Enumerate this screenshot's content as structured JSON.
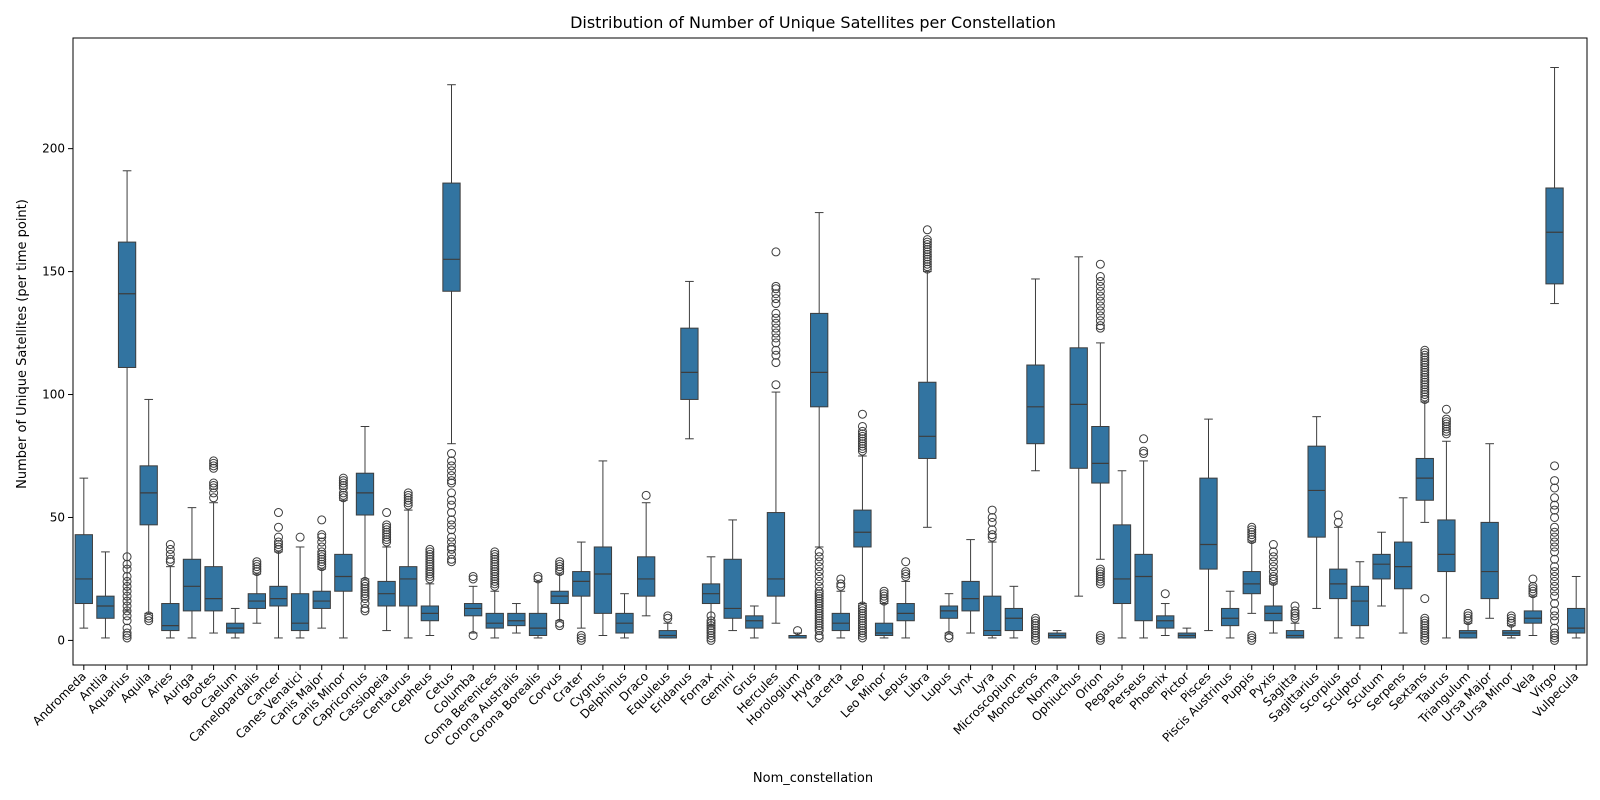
{
  "chart_data": {
    "type": "box",
    "title": "Distribution of Number of Unique Satellites per Constellation",
    "xlabel": "Nom_constellation",
    "ylabel": "Number of Unique Satellites (per time point)",
    "ylim": [
      -10,
      245
    ],
    "yticks": [
      0,
      50,
      100,
      150,
      200
    ],
    "grid": false,
    "color": "#3274a1",
    "outlier_color": "#3d3d3d",
    "boxes": [
      {
        "name": "Andromeda",
        "whislo": 5,
        "q1": 15,
        "med": 25,
        "q3": 43,
        "whishi": 66,
        "outliers": []
      },
      {
        "name": "Antlia",
        "whislo": 1,
        "q1": 9,
        "med": 14,
        "q3": 18,
        "whishi": 36,
        "outliers": []
      },
      {
        "name": "Aquarius",
        "whislo": 12,
        "q1": 111,
        "med": 141,
        "q3": 162,
        "whishi": 191,
        "outliers": [
          1,
          2,
          3,
          5,
          8,
          10,
          12,
          14,
          16,
          18,
          20,
          22,
          24,
          26,
          29,
          31,
          34
        ]
      },
      {
        "name": "Aquila",
        "whislo": 11,
        "q1": 47,
        "med": 60,
        "q3": 71,
        "whishi": 98,
        "outliers": [
          8,
          9,
          10
        ]
      },
      {
        "name": "Aries",
        "whislo": 1,
        "q1": 4,
        "med": 6,
        "q3": 15,
        "whishi": 30,
        "outliers": [
          32,
          33,
          35,
          37,
          39
        ]
      },
      {
        "name": "Auriga",
        "whislo": 1,
        "q1": 12,
        "med": 22,
        "q3": 33,
        "whishi": 54,
        "outliers": []
      },
      {
        "name": "Bootes",
        "whislo": 3,
        "q1": 12,
        "med": 17,
        "q3": 30,
        "whishi": 56,
        "outliers": [
          58,
          60,
          62,
          63,
          64,
          70,
          71,
          72,
          73
        ]
      },
      {
        "name": "Caelum",
        "whislo": 1,
        "q1": 3,
        "med": 5,
        "q3": 7,
        "whishi": 13,
        "outliers": []
      },
      {
        "name": "Camelopardalis",
        "whislo": 7,
        "q1": 13,
        "med": 16,
        "q3": 19,
        "whishi": 27,
        "outliers": [
          28,
          29,
          30,
          31,
          32
        ]
      },
      {
        "name": "Cancer",
        "whislo": 1,
        "q1": 14,
        "med": 17,
        "q3": 22,
        "whishi": 36,
        "outliers": [
          37,
          38,
          39,
          40,
          42,
          46,
          52
        ]
      },
      {
        "name": "Canes Venatici",
        "whislo": 1,
        "q1": 4,
        "med": 7,
        "q3": 19,
        "whishi": 38,
        "outliers": [
          42
        ]
      },
      {
        "name": "Canis Major",
        "whislo": 5,
        "q1": 13,
        "med": 16,
        "q3": 20,
        "whishi": 29,
        "outliers": [
          30,
          31,
          32,
          33,
          34,
          35,
          36,
          38,
          40,
          42,
          43,
          49
        ]
      },
      {
        "name": "Canis Minor",
        "whislo": 1,
        "q1": 20,
        "med": 26,
        "q3": 35,
        "whishi": 57,
        "outliers": [
          58,
          59,
          60,
          62,
          63,
          64,
          65,
          66
        ]
      },
      {
        "name": "Capricornus",
        "whislo": 25,
        "q1": 51,
        "med": 60,
        "q3": 68,
        "whishi": 87,
        "outliers": [
          12,
          13,
          15,
          17,
          18,
          19,
          20,
          21,
          22,
          23,
          24
        ]
      },
      {
        "name": "Cassiopeia",
        "whislo": 4,
        "q1": 14,
        "med": 19,
        "q3": 24,
        "whishi": 38,
        "outliers": [
          40,
          41,
          42,
          43,
          44,
          45,
          46,
          47,
          52
        ]
      },
      {
        "name": "Centaurus",
        "whislo": 1,
        "q1": 14,
        "med": 25,
        "q3": 30,
        "whishi": 53,
        "outliers": [
          55,
          56,
          57,
          58,
          59,
          60
        ]
      },
      {
        "name": "Cepheus",
        "whislo": 2,
        "q1": 8,
        "med": 11,
        "q3": 14,
        "whishi": 23,
        "outliers": [
          25,
          26,
          27,
          28,
          29,
          30,
          31,
          32,
          33,
          34,
          35,
          36,
          37
        ]
      },
      {
        "name": "Cetus",
        "whislo": 80,
        "q1": 142,
        "med": 155,
        "q3": 186,
        "whishi": 226,
        "outliers": [
          32,
          33,
          35,
          37,
          38,
          40,
          42,
          45,
          47,
          49,
          52,
          55,
          57,
          60,
          64,
          65,
          67,
          69,
          71,
          73,
          76
        ]
      },
      {
        "name": "Columba",
        "whislo": 3,
        "q1": 10,
        "med": 13,
        "q3": 15,
        "whishi": 22,
        "outliers": [
          2,
          25,
          26
        ]
      },
      {
        "name": "Coma Berenices",
        "whislo": 1,
        "q1": 5,
        "med": 7,
        "q3": 11,
        "whishi": 20,
        "outliers": [
          22,
          23,
          24,
          25,
          26,
          27,
          28,
          29,
          30,
          31,
          32,
          33,
          34,
          35,
          36
        ]
      },
      {
        "name": "Corona Australis",
        "whislo": 3,
        "q1": 6,
        "med": 8,
        "q3": 11,
        "whishi": 15,
        "outliers": []
      },
      {
        "name": "Corona Borealis",
        "whislo": 1,
        "q1": 2,
        "med": 5,
        "q3": 11,
        "whishi": 24,
        "outliers": [
          25,
          26
        ]
      },
      {
        "name": "Corvus",
        "whislo": 8,
        "q1": 15,
        "med": 18,
        "q3": 20,
        "whishi": 27,
        "outliers": [
          6,
          7,
          28,
          29,
          30,
          31,
          32
        ]
      },
      {
        "name": "Crater",
        "whislo": 5,
        "q1": 18,
        "med": 24,
        "q3": 28,
        "whishi": 40,
        "outliers": [
          0,
          1,
          2
        ]
      },
      {
        "name": "Cygnus",
        "whislo": 2,
        "q1": 11,
        "med": 27,
        "q3": 38,
        "whishi": 73,
        "outliers": []
      },
      {
        "name": "Delphinus",
        "whislo": 1,
        "q1": 3,
        "med": 7,
        "q3": 11,
        "whishi": 19,
        "outliers": []
      },
      {
        "name": "Draco",
        "whislo": 10,
        "q1": 18,
        "med": 25,
        "q3": 34,
        "whishi": 56,
        "outliers": [
          59
        ]
      },
      {
        "name": "Equuleus",
        "whislo": 1,
        "q1": 1,
        "med": 2,
        "q3": 4,
        "whishi": 7,
        "outliers": [
          9,
          10
        ]
      },
      {
        "name": "Eridanus",
        "whislo": 82,
        "q1": 98,
        "med": 109,
        "q3": 127,
        "whishi": 146,
        "outliers": []
      },
      {
        "name": "Fornax",
        "whislo": 6,
        "q1": 15,
        "med": 19,
        "q3": 23,
        "whishi": 34,
        "outliers": [
          0,
          1,
          2,
          3,
          4,
          5,
          6,
          7,
          8,
          10
        ]
      },
      {
        "name": "Gemini",
        "whislo": 4,
        "q1": 9,
        "med": 13,
        "q3": 33,
        "whishi": 49,
        "outliers": []
      },
      {
        "name": "Grus",
        "whislo": 1,
        "q1": 5,
        "med": 8,
        "q3": 10,
        "whishi": 14,
        "outliers": []
      },
      {
        "name": "Hercules",
        "whislo": 7,
        "q1": 18,
        "med": 25,
        "q3": 52,
        "whishi": 101,
        "outliers": [
          104,
          113,
          116,
          118,
          121,
          123,
          125,
          127,
          129,
          131,
          133,
          137,
          139,
          141,
          143,
          144,
          158
        ]
      },
      {
        "name": "Horologium",
        "whislo": 1,
        "q1": 1,
        "med": 1,
        "q3": 2,
        "whishi": 3,
        "outliers": [
          4
        ]
      },
      {
        "name": "Hydra",
        "whislo": 38,
        "q1": 95,
        "med": 109,
        "q3": 133,
        "whishi": 174,
        "outliers": [
          1,
          2,
          4,
          5,
          6,
          7,
          8,
          9,
          10,
          11,
          12,
          13,
          14,
          15,
          16,
          17,
          18,
          19,
          20,
          22,
          24,
          26,
          28,
          30,
          32,
          34,
          36
        ]
      },
      {
        "name": "Lacerta",
        "whislo": 1,
        "q1": 4,
        "med": 7,
        "q3": 11,
        "whishi": 20,
        "outliers": [
          22,
          23,
          25
        ]
      },
      {
        "name": "Leo",
        "whislo": 15,
        "q1": 38,
        "med": 44,
        "q3": 53,
        "whishi": 75,
        "outliers": [
          1,
          2,
          3,
          4,
          5,
          6,
          7,
          8,
          9,
          10,
          11,
          12,
          13,
          14,
          77,
          78,
          79,
          80,
          81,
          82,
          83,
          84,
          85,
          87,
          92
        ]
      },
      {
        "name": "Leo Minor",
        "whislo": 1,
        "q1": 2,
        "med": 3,
        "q3": 7,
        "whishi": 15,
        "outliers": [
          16,
          17,
          18,
          19,
          20
        ]
      },
      {
        "name": "Lepus",
        "whislo": 1,
        "q1": 8,
        "med": 11,
        "q3": 15,
        "whishi": 24,
        "outliers": [
          26,
          27,
          28,
          32
        ]
      },
      {
        "name": "Libra",
        "whislo": 46,
        "q1": 74,
        "med": 83,
        "q3": 105,
        "whishi": 150,
        "outliers": [
          151,
          152,
          153,
          154,
          155,
          156,
          157,
          158,
          159,
          160,
          161,
          162,
          163,
          167
        ]
      },
      {
        "name": "Lupus",
        "whislo": 3,
        "q1": 9,
        "med": 12,
        "q3": 14,
        "whishi": 19,
        "outliers": [
          1,
          2
        ]
      },
      {
        "name": "Lynx",
        "whislo": 3,
        "q1": 12,
        "med": 17,
        "q3": 24,
        "whishi": 41,
        "outliers": []
      },
      {
        "name": "Lyra",
        "whislo": 1,
        "q1": 2,
        "med": 4,
        "q3": 18,
        "whishi": 40,
        "outliers": [
          42,
          43,
          45,
          48,
          50,
          53
        ]
      },
      {
        "name": "Microscopium",
        "whislo": 1,
        "q1": 4,
        "med": 9,
        "q3": 13,
        "whishi": 22,
        "outliers": []
      },
      {
        "name": "Monoceros",
        "whislo": 69,
        "q1": 80,
        "med": 95,
        "q3": 112,
        "whishi": 147,
        "outliers": [
          0,
          1,
          2,
          3,
          4,
          5,
          6,
          7,
          8,
          9
        ]
      },
      {
        "name": "Norma",
        "whislo": 1,
        "q1": 1,
        "med": 2,
        "q3": 3,
        "whishi": 4,
        "outliers": []
      },
      {
        "name": "Ophiuchus",
        "whislo": 18,
        "q1": 70,
        "med": 96,
        "q3": 119,
        "whishi": 156,
        "outliers": []
      },
      {
        "name": "Orion",
        "whislo": 33,
        "q1": 64,
        "med": 72,
        "q3": 87,
        "whishi": 121,
        "outliers": [
          0,
          1,
          2,
          23,
          24,
          25,
          26,
          27,
          28,
          29,
          127,
          128,
          130,
          132,
          134,
          136,
          138,
          140,
          142,
          144,
          146,
          148,
          153
        ]
      },
      {
        "name": "Pegasus",
        "whislo": 1,
        "q1": 15,
        "med": 25,
        "q3": 47,
        "whishi": 69,
        "outliers": []
      },
      {
        "name": "Perseus",
        "whislo": 1,
        "q1": 8,
        "med": 26,
        "q3": 35,
        "whishi": 73,
        "outliers": [
          76,
          77,
          82
        ]
      },
      {
        "name": "Phoenix",
        "whislo": 2,
        "q1": 5,
        "med": 8,
        "q3": 10,
        "whishi": 15,
        "outliers": [
          19
        ]
      },
      {
        "name": "Pictor",
        "whislo": 1,
        "q1": 1,
        "med": 2,
        "q3": 3,
        "whishi": 5,
        "outliers": []
      },
      {
        "name": "Pisces",
        "whislo": 4,
        "q1": 29,
        "med": 39,
        "q3": 66,
        "whishi": 90,
        "outliers": []
      },
      {
        "name": "Piscis Austrinus",
        "whislo": 1,
        "q1": 6,
        "med": 9,
        "q3": 13,
        "whishi": 20,
        "outliers": []
      },
      {
        "name": "Puppis",
        "whislo": 11,
        "q1": 19,
        "med": 23,
        "q3": 28,
        "whishi": 40,
        "outliers": [
          0,
          1,
          2,
          41,
          42,
          43,
          44,
          45,
          46
        ]
      },
      {
        "name": "Pyxis",
        "whislo": 3,
        "q1": 8,
        "med": 11,
        "q3": 14,
        "whishi": 23,
        "outliers": [
          24,
          25,
          26,
          28,
          30,
          32,
          34,
          36,
          39
        ]
      },
      {
        "name": "Sagitta",
        "whislo": 1,
        "q1": 1,
        "med": 2,
        "q3": 4,
        "whishi": 7,
        "outliers": [
          9,
          10,
          11,
          12,
          14
        ]
      },
      {
        "name": "Sagittarius",
        "whislo": 13,
        "q1": 42,
        "med": 61,
        "q3": 79,
        "whishi": 91,
        "outliers": []
      },
      {
        "name": "Scorpius",
        "whislo": 1,
        "q1": 17,
        "med": 23,
        "q3": 29,
        "whishi": 46,
        "outliers": [
          48,
          51
        ]
      },
      {
        "name": "Sculptor",
        "whislo": 1,
        "q1": 6,
        "med": 16,
        "q3": 22,
        "whishi": 32,
        "outliers": []
      },
      {
        "name": "Scutum",
        "whislo": 14,
        "q1": 25,
        "med": 31,
        "q3": 35,
        "whishi": 44,
        "outliers": []
      },
      {
        "name": "Serpens",
        "whislo": 3,
        "q1": 21,
        "med": 30,
        "q3": 40,
        "whishi": 58,
        "outliers": []
      },
      {
        "name": "Sextans",
        "whislo": 48,
        "q1": 57,
        "med": 66,
        "q3": 74,
        "whishi": 97,
        "outliers": [
          0,
          1,
          2,
          3,
          4,
          5,
          6,
          7,
          8,
          9,
          17,
          98,
          99,
          100,
          101,
          102,
          103,
          104,
          105,
          106,
          107,
          108,
          109,
          110,
          111,
          112,
          113,
          114,
          115,
          116,
          117,
          118
        ]
      },
      {
        "name": "Taurus",
        "whislo": 1,
        "q1": 28,
        "med": 35,
        "q3": 49,
        "whishi": 81,
        "outliers": [
          84,
          85,
          86,
          87,
          88,
          89,
          90,
          94
        ]
      },
      {
        "name": "Triangulum",
        "whislo": 1,
        "q1": 1,
        "med": 3,
        "q3": 4,
        "whishi": 7,
        "outliers": [
          8,
          9,
          10,
          11
        ]
      },
      {
        "name": "Ursa Major",
        "whislo": 9,
        "q1": 17,
        "med": 28,
        "q3": 48,
        "whishi": 80,
        "outliers": []
      },
      {
        "name": "Ursa Minor",
        "whislo": 1,
        "q1": 2,
        "med": 3,
        "q3": 4,
        "whishi": 6,
        "outliers": [
          7,
          8,
          9,
          10
        ]
      },
      {
        "name": "Vela",
        "whislo": 2,
        "q1": 7,
        "med": 9,
        "q3": 12,
        "whishi": 18,
        "outliers": [
          19,
          20,
          21,
          22,
          25
        ]
      },
      {
        "name": "Virgo",
        "whislo": 137,
        "q1": 145,
        "med": 166,
        "q3": 184,
        "whishi": 233,
        "outliers": [
          0,
          1,
          2,
          3,
          5,
          8,
          10,
          12,
          15,
          18,
          20,
          22,
          24,
          26,
          28,
          30,
          33,
          36,
          38,
          40,
          42,
          44,
          46,
          50,
          53,
          55,
          58,
          62,
          65,
          71
        ]
      },
      {
        "name": "Vulpecula",
        "whislo": 1,
        "q1": 3,
        "med": 5,
        "q3": 13,
        "whishi": 26,
        "outliers": []
      }
    ]
  }
}
